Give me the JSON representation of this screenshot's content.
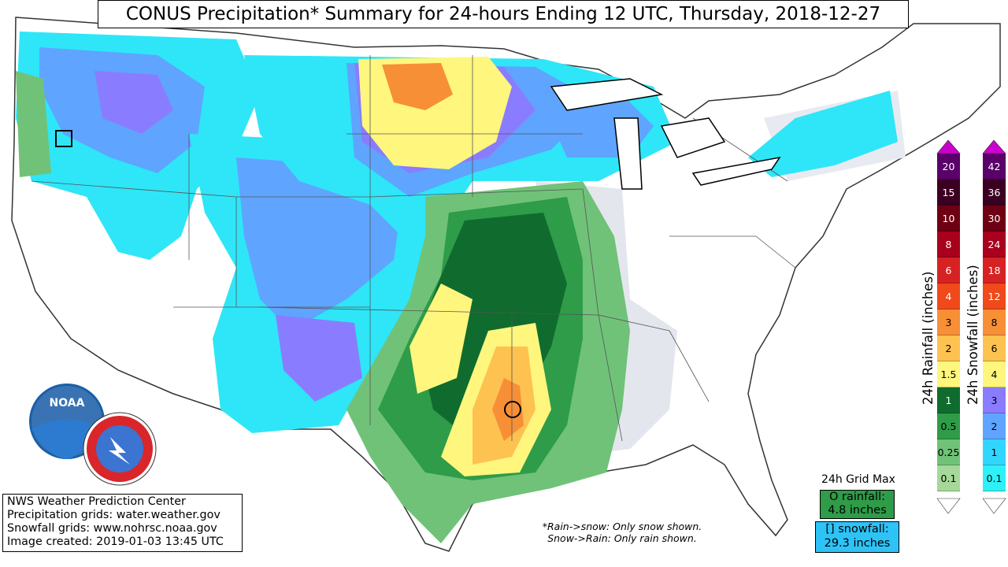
{
  "title": "CONUS Precipitation* Summary for 24-hours Ending 12 UTC, Thursday, 2018-12-27",
  "info": {
    "line1": "NWS Weather Prediction Center",
    "line2": "Precipitation grids: water.weather.gov",
    "line3": "Snowfall grids: www.nohrsc.noaa.gov",
    "line4": "Image created: 2019-01-03 13:45 UTC"
  },
  "notes": {
    "line1": "*Rain->snow: Only snow shown.",
    "line2": "Snow->Rain: Only rain shown."
  },
  "grid_max": {
    "title": "24h Grid Max",
    "rain_label": "O rainfall:",
    "rain_value": "4.8 inches",
    "snow_label": "[] snowfall:",
    "snow_value": "29.3 inches"
  },
  "logos": {
    "noaa": "NOAA",
    "nws": "NATIONAL WEATHER SERVICE"
  },
  "rain_legend": {
    "label": "24h Rainfall (inches)",
    "items": [
      {
        "value": "20",
        "color": "#5a0069"
      },
      {
        "value": "15",
        "color": "#3b0021"
      },
      {
        "value": "10",
        "color": "#6e0013"
      },
      {
        "value": "8",
        "color": "#a8001d"
      },
      {
        "value": "6",
        "color": "#d62223"
      },
      {
        "value": "4",
        "color": "#f0491a"
      },
      {
        "value": "3",
        "color": "#f78f36"
      },
      {
        "value": "2",
        "color": "#fdc250"
      },
      {
        "value": "1.5",
        "color": "#fff67e"
      },
      {
        "value": "1",
        "color": "#0f6c2e"
      },
      {
        "value": "0.5",
        "color": "#2e9c48"
      },
      {
        "value": "0.25",
        "color": "#70c278"
      },
      {
        "value": "0.1",
        "color": "#a6d89a"
      }
    ]
  },
  "snow_legend": {
    "label": "24h Snowfall (inches)",
    "items": [
      {
        "value": "42",
        "color": "#5a0069"
      },
      {
        "value": "36",
        "color": "#3b0021"
      },
      {
        "value": "30",
        "color": "#6e0013"
      },
      {
        "value": "24",
        "color": "#a8001d"
      },
      {
        "value": "18",
        "color": "#d62223"
      },
      {
        "value": "12",
        "color": "#f0491a"
      },
      {
        "value": "8",
        "color": "#f78f36"
      },
      {
        "value": "6",
        "color": "#fdc250"
      },
      {
        "value": "4",
        "color": "#fff67e"
      },
      {
        "value": "3",
        "color": "#8a7cff"
      },
      {
        "value": "2",
        "color": "#5fa4ff"
      },
      {
        "value": "1",
        "color": "#31d6ff"
      },
      {
        "value": "0.1",
        "color": "#2ef0f6"
      }
    ]
  }
}
